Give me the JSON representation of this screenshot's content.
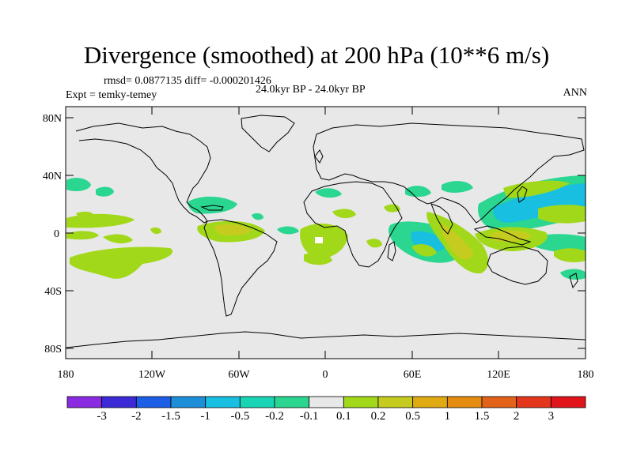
{
  "header": {
    "title": "Divergence (smoothed) at 200 hPa (10**6 m/s)",
    "stats": "rmsd= 0.0877135 diff= -0.000201426",
    "experiment": "Expt = temky-temey",
    "period": "24.0kyr BP - 24.0kyr BP",
    "season": "ANN"
  },
  "axes": {
    "lat_labels": [
      "80N",
      "40N",
      "0",
      "40S",
      "80S"
    ],
    "lon_labels": [
      "180",
      "120W",
      "60W",
      "0",
      "60E",
      "120E",
      "180"
    ]
  },
  "colorbar": {
    "labels": [
      "-3",
      "-2",
      "-1.5",
      "-1",
      "-0.5",
      "-0.2",
      "-0.1",
      "0.1",
      "0.2",
      "0.5",
      "1",
      "1.5",
      "2",
      "3"
    ],
    "colors": [
      "#8a2be2",
      "#3b2ad6",
      "#1c5ee6",
      "#1d8fd9",
      "#18bfe0",
      "#19d5b5",
      "#2ad690",
      "#e8e8e8",
      "#a2d81a",
      "#c6cc1f",
      "#e0aa12",
      "#e38c10",
      "#e2621a",
      "#e3361c",
      "#e0141a"
    ]
  },
  "map": {
    "background": "#e8e8e8",
    "colors": {
      "neg_light": "#19d5b5",
      "neg_mid": "#18bfe0",
      "pos_light": "#a2d81a",
      "pos_mid": "#c6cc1f",
      "pos_strong": "#e0aa12"
    }
  }
}
